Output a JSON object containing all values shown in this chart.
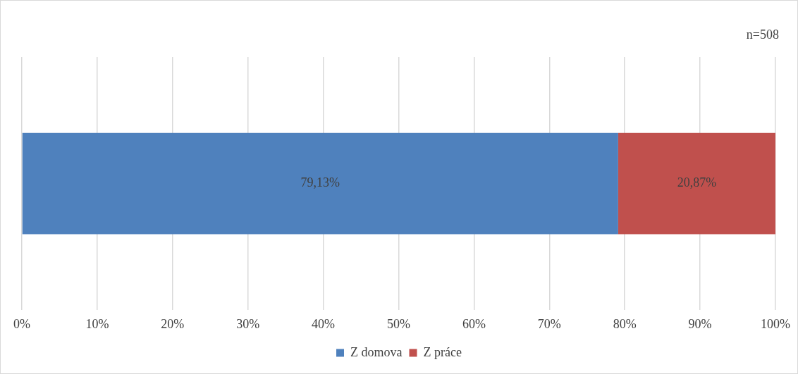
{
  "chart_data": {
    "type": "bar",
    "orientation": "horizontal",
    "stacked": true,
    "categories": [
      null
    ],
    "series": [
      {
        "name": "Z domova",
        "color": "#4f81bd",
        "values": [
          79.13
        ],
        "value_labels": [
          "79,13%"
        ]
      },
      {
        "name": "Z práce",
        "color": "#c0504d",
        "values": [
          20.87
        ],
        "value_labels": [
          "20,87%"
        ]
      }
    ],
    "xlim": [
      0,
      100
    ],
    "xticks": [
      {
        "value": 0,
        "label": "0%"
      },
      {
        "value": 10,
        "label": "10%"
      },
      {
        "value": 20,
        "label": "20%"
      },
      {
        "value": 30,
        "label": "30%"
      },
      {
        "value": 40,
        "label": "40%"
      },
      {
        "value": 50,
        "label": "50%"
      },
      {
        "value": 60,
        "label": "60%"
      },
      {
        "value": 70,
        "label": "70%"
      },
      {
        "value": 80,
        "label": "80%"
      },
      {
        "value": 90,
        "label": "90%"
      },
      {
        "value": 100,
        "label": "100%"
      }
    ],
    "grid": "x",
    "legend": "bottom",
    "annotations": [
      "n=508"
    ]
  }
}
